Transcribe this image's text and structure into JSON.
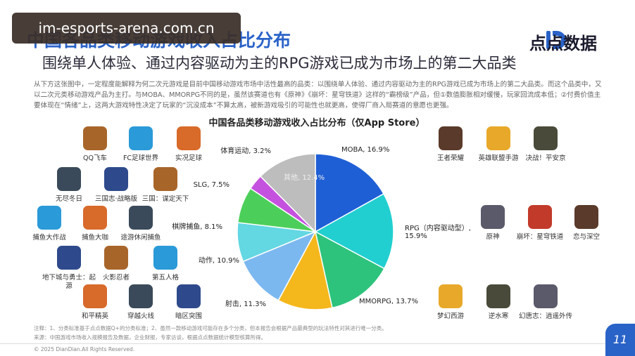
{
  "header": {
    "title": "中国各品类移动游戏收入占比分布",
    "subtitle": "围绕单人体验、通过内容驱动为主的RPG游戏已成为市场上的第二大品类",
    "logo": "点点数据",
    "watermark": "im-esports-arena.com.cn"
  },
  "paragraph": "从下方这张图中，一定程度能解释为何二次元游戏是目前中国移动游戏市场中活性最高的品类：以围绕单人体验、通过内容驱动为主的RPG游戏已成为市场上的第二大品类。而这个品类中，又以二次元类移动游戏产品为主打。与MOBA、MMORPG不同的是，虽然该赛道也有《原神》《崩坏：星穹铁道》这样的“霸榜级”产品，但①数值膨胀相对缓慢，玩家回流成本低；②付费价值主要体现在“情绪”上，这两大游戏特性决定了玩家的“沉没成本”不算太高，被新游戏吸引的可能性也就更高，使得厂商入局赛道的意愿也更强。",
  "chart_data": {
    "type": "pie",
    "title": "中国各品类移动游戏收入占比分布（仅App Store）",
    "values": [
      16.9,
      15.9,
      13.7,
      11.3,
      10.9,
      8.1,
      7.5,
      3.2,
      12.4
    ],
    "value_labels": [
      "MOBA, 16.9%",
      "RPG（内容驱动型）, 15.9%",
      "MMORPG, 13.7%",
      "射击, 11.3%",
      "动作, 10.9%",
      "棋牌捕鱼, 8.1%",
      "SLG, 7.5%",
      "体育运动, 3.2%",
      "其他, 12.4%"
    ],
    "colors": [
      "#1f5fd6",
      "#22cfd0",
      "#2dc37c",
      "#f4b71c",
      "#7cb8f0",
      "#63d7e2",
      "#4ccf5a",
      "#c552df",
      "#bdbdbd"
    ]
  },
  "games": {
    "left": [
      "QQ飞车",
      "FC足球世界",
      "实况足球",
      "无尽冬日",
      "三国志·战略版",
      "三国：谋定天下",
      "捕鱼大作战",
      "捕鱼大咖",
      "途游休闲捕鱼",
      "地下城与勇士：起源",
      "火影忍者",
      "第五人格",
      "和平精英",
      "穿越火线",
      "暗区突围"
    ],
    "right": [
      "王者荣耀",
      "英雄联盟手游",
      "决战！平安京",
      "原神",
      "崩坏：星穹铁道",
      "恋与深空",
      "梦幻西游",
      "逆水寒",
      "幻唐志：逍遥外传"
    ]
  },
  "footer": {
    "note": "注释：1、分类标准基于点点数据Q+的分类标准；2、虽然一款移动游戏可能存在多个分类，但本报告会根据产品最典型的玩法特性对其进行唯一分类。",
    "source": "来源：中国游戏市场收入规模报告及数据，企业财报，专家访谈，根据点点数据统计模型核算所得。",
    "copyright": "© 2025 DianDian.All Rights Reserved.",
    "page": "11"
  }
}
